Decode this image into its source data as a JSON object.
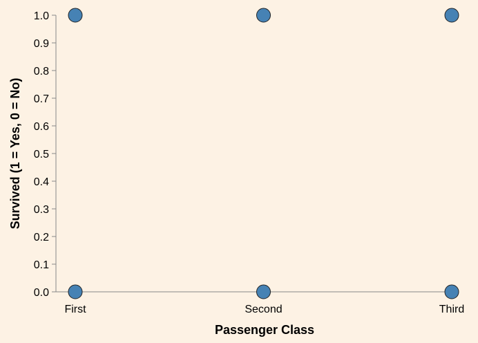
{
  "chart_data": {
    "type": "scatter",
    "title": "",
    "xlabel": "Passenger Class",
    "ylabel": "Survived (1 = Yes, 0 = No)",
    "categories": [
      "First",
      "Second",
      "Third"
    ],
    "ylim": [
      0,
      1
    ],
    "yticks": [
      "0.0",
      "0.1",
      "0.2",
      "0.3",
      "0.4",
      "0.5",
      "0.6",
      "0.7",
      "0.8",
      "0.9",
      "1.0"
    ],
    "grid": false,
    "points": [
      {
        "x": "First",
        "y": 1
      },
      {
        "x": "First",
        "y": 0
      },
      {
        "x": "Second",
        "y": 1
      },
      {
        "x": "Second",
        "y": 0
      },
      {
        "x": "Third",
        "y": 1
      },
      {
        "x": "Third",
        "y": 0
      }
    ],
    "colors": {
      "point": "#4682b4",
      "background": "#fdf2e4"
    }
  }
}
